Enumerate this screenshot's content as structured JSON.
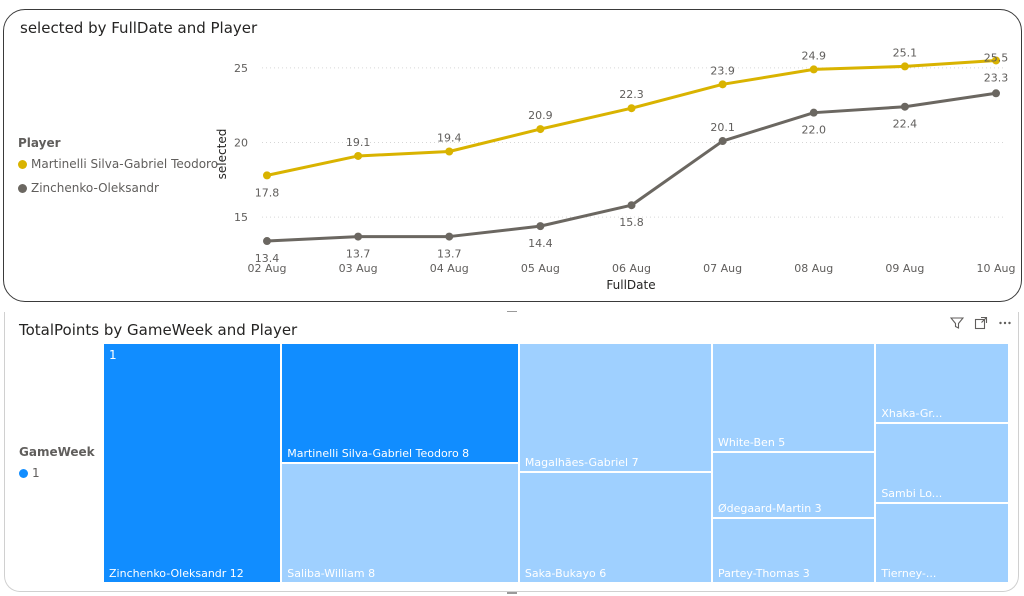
{
  "line_visual": {
    "title": "selected by FullDate and Player",
    "legend_title": "Player"
  },
  "treemap_visual": {
    "title": "TotalPoints by GameWeek and Player",
    "legend_title": "GameWeek",
    "legend_item": "1",
    "group_label": "1",
    "icons": [
      "filter-icon",
      "focus-mode-icon",
      "more-options-icon"
    ]
  },
  "chart_data": [
    {
      "type": "line",
      "title": "selected by FullDate and Player",
      "xlabel": "FullDate",
      "ylabel": "selected",
      "categories": [
        "02 Aug",
        "03 Aug",
        "04 Aug",
        "05 Aug",
        "06 Aug",
        "07 Aug",
        "08 Aug",
        "09 Aug",
        "10 Aug"
      ],
      "series": [
        {
          "name": "Martinelli Silva-Gabriel Teodoro",
          "color": "#d9b300",
          "values": [
            17.8,
            19.1,
            19.4,
            20.9,
            22.3,
            23.9,
            24.9,
            25.1,
            25.5
          ]
        },
        {
          "name": "Zinchenko-Oleksandr",
          "color": "#6b6761",
          "values": [
            13.4,
            13.7,
            13.7,
            14.4,
            15.8,
            20.1,
            22.0,
            22.4,
            23.3
          ]
        }
      ],
      "yticks": [
        15,
        20,
        25
      ],
      "ylim": [
        12.8,
        26.2
      ],
      "grid": true,
      "legend_position": "left"
    },
    {
      "type": "treemap",
      "title": "TotalPoints by GameWeek and Player",
      "group": "1",
      "total": 61,
      "items": [
        {
          "label": "Zinchenko-Oleksandr 12",
          "value": 12,
          "color": "#118dff"
        },
        {
          "label": "Martinelli Silva-Gabriel Teodoro 8",
          "value": 8,
          "color": "#118dff"
        },
        {
          "label": "Saliba-William 8",
          "value": 8,
          "color": "#9fd0ff"
        },
        {
          "label": "Magalhães-Gabriel 7",
          "value": 7,
          "color": "#9fd0ff"
        },
        {
          "label": "Saka-Bukayo 6",
          "value": 6,
          "color": "#9fd0ff"
        },
        {
          "label": "White-Ben 5",
          "value": 5,
          "color": "#9fd0ff"
        },
        {
          "label": "Ødegaard-Martin 3",
          "value": 3,
          "color": "#9fd0ff"
        },
        {
          "label": "Partey-Thomas 3",
          "value": 3,
          "color": "#9fd0ff"
        },
        {
          "label": "Xhaka-Gr...",
          "value": 3,
          "color": "#9fd0ff"
        },
        {
          "label": "Sambi Lo...",
          "value": 3,
          "color": "#9fd0ff"
        },
        {
          "label": "Tierney-...",
          "value": 3,
          "color": "#9fd0ff"
        }
      ]
    }
  ]
}
